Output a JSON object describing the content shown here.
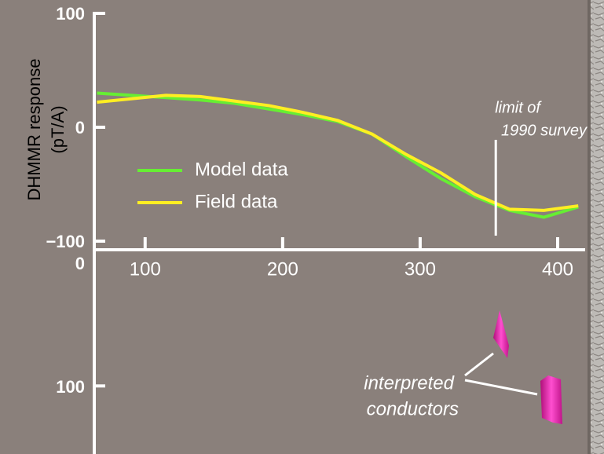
{
  "chart_data": [
    {
      "type": "line",
      "ylabel": [
        "DHMMR response",
        "(pT/A)"
      ],
      "x": [
        65,
        90,
        115,
        140,
        165,
        190,
        215,
        240,
        265,
        290,
        315,
        340,
        365,
        390,
        415
      ],
      "series": [
        {
          "name": "Model data",
          "color": "#66ee33",
          "values": [
            30,
            28,
            26,
            24,
            21,
            16,
            11,
            5,
            -6,
            -26,
            -45,
            -61,
            -73,
            -79,
            -70
          ]
        },
        {
          "name": "Field data",
          "color": "#ffee22",
          "values": [
            22,
            25,
            28,
            27,
            23,
            19,
            13,
            6,
            -6,
            -24,
            -40,
            -59,
            -72,
            -73,
            -69
          ]
        }
      ],
      "xlim": [
        63,
        420
      ],
      "xticks": [
        100,
        200,
        300,
        400
      ],
      "ylim": [
        -100,
        100
      ],
      "yticks": [
        100,
        0,
        {
          "value": -100,
          "label": "−100"
        }
      ],
      "annotation": [
        "limit of",
        "1990 survey"
      ],
      "limit_x": 355
    },
    {
      "type": "section",
      "ylim": [
        0,
        150
      ],
      "y_inverted": true,
      "yticks": [
        0,
        100
      ],
      "annotation": [
        "interpreted",
        "conductors"
      ]
    }
  ]
}
